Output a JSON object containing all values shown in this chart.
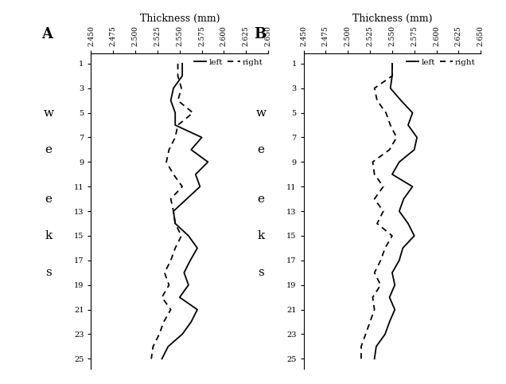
{
  "title": "Thickness (mm)",
  "weeks": [
    1,
    2,
    3,
    4,
    5,
    6,
    7,
    8,
    9,
    10,
    11,
    12,
    13,
    14,
    15,
    16,
    17,
    18,
    19,
    20,
    21,
    22,
    23,
    24,
    25
  ],
  "A_left": [
    2.553,
    2.553,
    2.543,
    2.54,
    2.545,
    2.545,
    2.575,
    2.563,
    2.582,
    2.568,
    2.573,
    2.558,
    2.543,
    2.545,
    2.56,
    2.57,
    2.562,
    2.555,
    2.56,
    2.55,
    2.57,
    2.563,
    2.553,
    2.537,
    2.53
  ],
  "A_right": [
    2.548,
    2.548,
    2.552,
    2.548,
    2.565,
    2.548,
    2.545,
    2.538,
    2.535,
    2.543,
    2.553,
    2.54,
    2.543,
    2.545,
    2.552,
    2.545,
    2.54,
    2.533,
    2.538,
    2.53,
    2.54,
    2.532,
    2.527,
    2.52,
    2.518
  ],
  "B_left": [
    2.55,
    2.55,
    2.548,
    2.56,
    2.573,
    2.568,
    2.578,
    2.575,
    2.558,
    2.55,
    2.573,
    2.563,
    2.558,
    2.568,
    2.575,
    2.562,
    2.558,
    2.55,
    2.553,
    2.547,
    2.553,
    2.547,
    2.542,
    2.532,
    2.53
  ],
  "B_right": [
    2.55,
    2.55,
    2.53,
    2.533,
    2.543,
    2.548,
    2.555,
    2.547,
    2.528,
    2.53,
    2.54,
    2.53,
    2.54,
    2.533,
    2.55,
    2.542,
    2.537,
    2.53,
    2.537,
    2.528,
    2.53,
    2.525,
    2.52,
    2.515,
    2.515
  ],
  "xlim": [
    2.45,
    2.65
  ],
  "xticks": [
    2.45,
    2.475,
    2.5,
    2.525,
    2.55,
    2.575,
    2.6,
    2.625,
    2.65
  ],
  "ytick_vals": [
    1,
    3,
    5,
    7,
    9,
    11,
    13,
    15,
    17,
    19,
    21,
    23,
    25
  ],
  "weeks_letters": [
    [
      "w",
      5
    ],
    [
      "e",
      8
    ],
    [
      "e",
      12
    ],
    [
      "k",
      15
    ],
    [
      "s",
      18
    ]
  ],
  "bg_color": "#ffffff",
  "line_color": "#000000"
}
